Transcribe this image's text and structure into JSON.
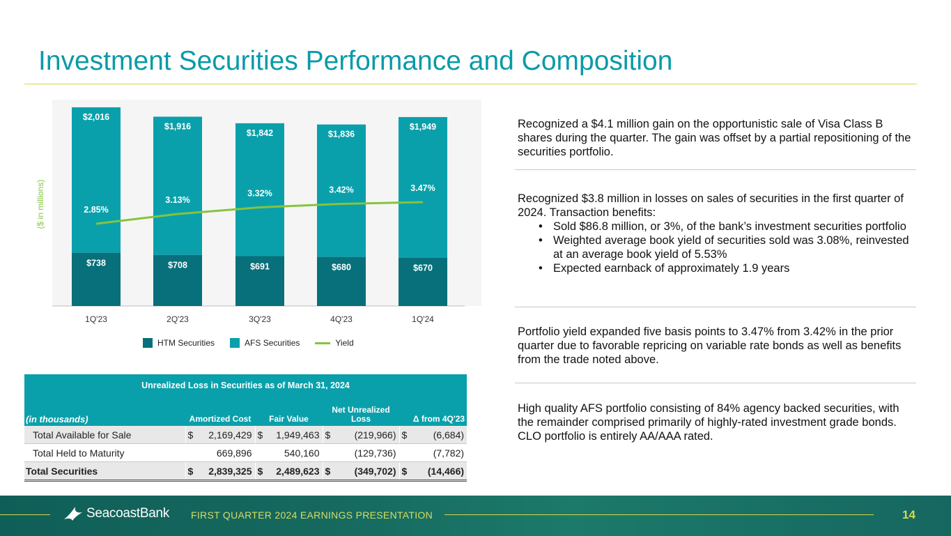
{
  "title": "Investment Securities Performance and Composition",
  "chart_data": {
    "type": "bar",
    "stacked": true,
    "ylabel": "($ in millions)",
    "categories": [
      "1Q'23",
      "2Q'23",
      "3Q'23",
      "4Q'23",
      "1Q'24"
    ],
    "series": [
      {
        "name": "HTM Securities",
        "values": [
          738,
          708,
          691,
          680,
          670
        ],
        "labels": [
          "$738",
          "$708",
          "$691",
          "$680",
          "$670"
        ],
        "color": "#07707a"
      },
      {
        "name": "AFS Securities",
        "values": [
          2016,
          1916,
          1842,
          1836,
          1949
        ],
        "labels": [
          "$2,016",
          "$1,916",
          "$1,842",
          "$1,836",
          "$1,949"
        ],
        "color": "#0aa0ab"
      },
      {
        "name": "Yield",
        "type": "line",
        "values": [
          2.85,
          3.13,
          3.32,
          3.42,
          3.47
        ],
        "labels": [
          "2.85%",
          "3.13%",
          "3.32%",
          "3.42%",
          "3.47%"
        ],
        "color": "#86c33e"
      }
    ],
    "legend": "bottom"
  },
  "legend": {
    "htm": "HTM Securities",
    "afs": "AFS Securities",
    "yield": "Yield"
  },
  "table": {
    "caption": "Unrealized Loss in Securities as of March 31, 2024",
    "headers": {
      "label": "(in thousands)",
      "amortized": "Amortized Cost",
      "fair": "Fair Value",
      "net": "Net Unrealized Loss",
      "delta": "Δ from 4Q'23"
    },
    "rows": [
      {
        "label": "Total Available for Sale",
        "amortized": {
          "sym": "$",
          "val": "2,169,429"
        },
        "fair": {
          "sym": "$",
          "val": "1,949,463"
        },
        "net": {
          "sym": "$",
          "val": "(219,966)"
        },
        "delta": {
          "sym": "$",
          "val": "(6,684)"
        }
      },
      {
        "label": "Total Held to Maturity",
        "amortized": {
          "sym": "",
          "val": "669,896"
        },
        "fair": {
          "sym": "",
          "val": "540,160"
        },
        "net": {
          "sym": "",
          "val": "(129,736)"
        },
        "delta": {
          "sym": "",
          "val": "(7,782)"
        }
      },
      {
        "label": "Total Securities",
        "amortized": {
          "sym": "$",
          "val": "2,839,325"
        },
        "fair": {
          "sym": "$",
          "val": "2,489,623"
        },
        "net": {
          "sym": "$",
          "val": "(349,702)"
        },
        "delta": {
          "sym": "$",
          "val": "(14,466)"
        }
      }
    ]
  },
  "panels": {
    "p1": "Recognized a $4.1 million gain on the opportunistic sale of Visa Class B shares during the quarter. The gain was offset by a partial repositioning of the securities portfolio.",
    "p2": "Recognized $3.8 million in losses on sales of securities in the first quarter of 2024. Transaction benefits:",
    "p2_bullets": [
      "Sold $86.8 million, or 3%, of the bank’s investment securities portfolio",
      "Weighted average book yield of securities sold was 3.08%, reinvested at an average book yield of 5.53%",
      "Expected earnback of approximately 1.9 years"
    ],
    "p3": "Portfolio yield expanded five basis points to 3.47% from 3.42% in the prior quarter due to favorable repricing on variable rate bonds as well as benefits from the trade noted above.",
    "p4": "High quality AFS portfolio consisting of 84% agency backed securities, with the remainder comprised primarily of highly-rated investment grade bonds. CLO portfolio is entirely AA/AAA rated."
  },
  "footer": {
    "brand": "SeacoastBank",
    "subtitle": "FIRST QUARTER 2024 EARNINGS PRESENTATION",
    "page": "14"
  },
  "colors": {
    "accent": "#0a9aa8",
    "lime": "#d4d84a",
    "htm": "#07707a",
    "afs": "#0aa0ab",
    "yield": "#86c33e"
  }
}
